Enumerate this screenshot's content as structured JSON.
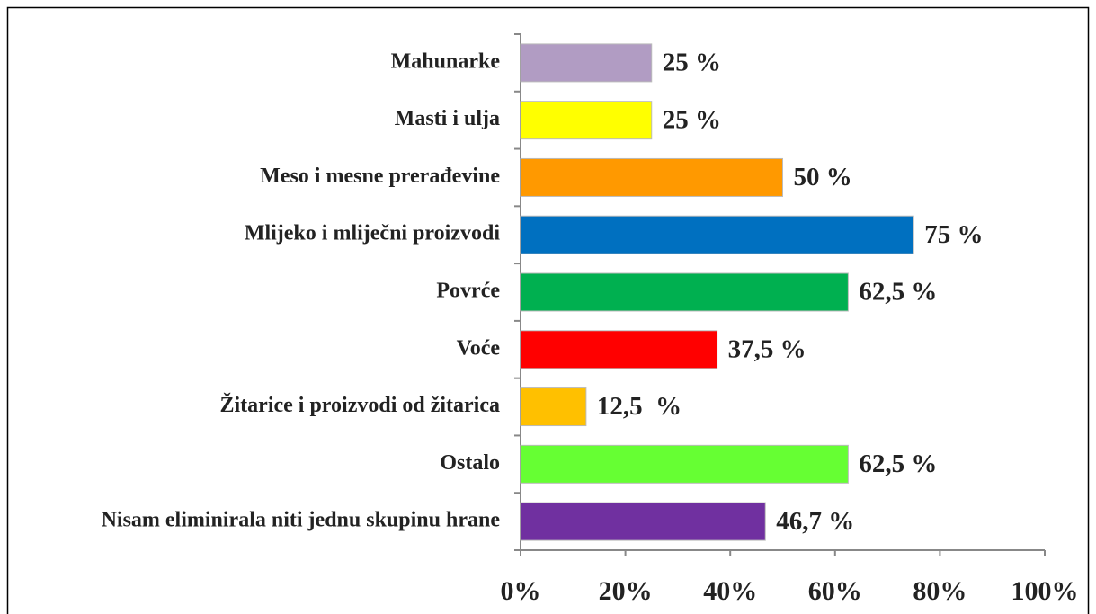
{
  "chart_data": {
    "type": "bar",
    "orientation": "horizontal",
    "categories": [
      "Mahunarke",
      "Masti i ulja",
      "Meso i mesne prerađevine",
      "Mlijeko i mliječni proizvodi",
      "Povrće",
      "Voće",
      "Žitarice i proizvodi od žitarica",
      "Ostalo",
      "Nisam eliminirala niti jednu skupinu hrane"
    ],
    "values": [
      25,
      25,
      50,
      75,
      62.5,
      37.5,
      12.5,
      62.5,
      46.7
    ],
    "value_labels": [
      "25 %",
      "25 %",
      "50 %",
      "75 %",
      "62,5 %",
      "37,5 %",
      "12,5  %",
      "62,5 %",
      "46,7 %"
    ],
    "colors": [
      "#b19cc3",
      "#ffff00",
      "#ff9900",
      "#0070c0",
      "#00b050",
      "#ff0000",
      "#ffc000",
      "#66ff33",
      "#7030a0"
    ],
    "xlim": [
      0,
      100
    ],
    "xticks": [
      {
        "value": 0,
        "label": "0%"
      },
      {
        "value": 20,
        "label": "20%"
      },
      {
        "value": 40,
        "label": "40%"
      },
      {
        "value": 60,
        "label": "60%"
      },
      {
        "value": 80,
        "label": "80%"
      },
      {
        "value": 100,
        "label": "100%"
      }
    ],
    "grid": false
  }
}
